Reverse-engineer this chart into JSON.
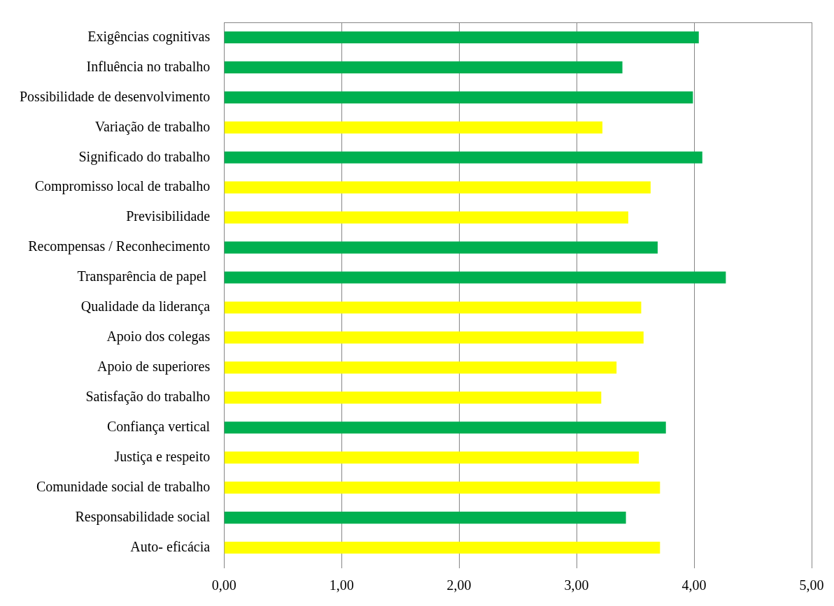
{
  "chart_data": {
    "type": "bar",
    "orientation": "horizontal",
    "categories": [
      "Exigências cognitivas",
      "Influência no trabalho",
      "Possibilidade de desenvolvimento",
      "Variação de trabalho",
      "Significado do trabalho",
      "Compromisso local de trabalho",
      "Previsibilidade",
      "Recompensas / Reconhecimento",
      "Transparência de papel ",
      "Qualidade da liderança",
      "Apoio dos colegas",
      "Apoio de superiores",
      "Satisfação do trabalho",
      "Confiança vertical",
      "Justiça e respeito",
      "Comunidade social de trabalho",
      "Responsabilidade social",
      "Auto- eficácia"
    ],
    "values": [
      4.04,
      3.39,
      3.99,
      3.22,
      4.07,
      3.63,
      3.44,
      3.69,
      4.27,
      3.55,
      3.57,
      3.34,
      3.21,
      3.76,
      3.53,
      3.71,
      3.42,
      3.71
    ],
    "colors": [
      "#00b050",
      "#00b050",
      "#00b050",
      "#ffff00",
      "#00b050",
      "#ffff00",
      "#ffff00",
      "#00b050",
      "#00b050",
      "#ffff00",
      "#ffff00",
      "#ffff00",
      "#ffff00",
      "#00b050",
      "#ffff00",
      "#ffff00",
      "#00b050",
      "#ffff00"
    ],
    "xlim": [
      0,
      5
    ],
    "xticks": [
      {
        "value": 0,
        "label": "0,00"
      },
      {
        "value": 1,
        "label": "1,00"
      },
      {
        "value": 2,
        "label": "2,00"
      },
      {
        "value": 3,
        "label": "3,00"
      },
      {
        "value": 4,
        "label": "4,00"
      },
      {
        "value": 5,
        "label": "5,00"
      }
    ],
    "grid": "x"
  }
}
